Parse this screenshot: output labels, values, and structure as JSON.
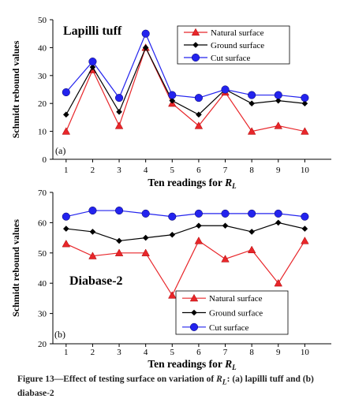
{
  "figure": {
    "charts": [
      {
        "panel": "(a)",
        "title": "Lapilli tuff",
        "ylabel": "Schmidt rebound values",
        "ylim": [
          0,
          50
        ],
        "yticks": [
          0,
          10,
          20,
          30,
          40,
          50
        ],
        "xticks": [
          "1",
          "2",
          "3",
          "4",
          "5",
          "6",
          "7",
          "8",
          "9",
          "10"
        ],
        "xlabel_main": "Ten readings for ",
        "xlabel_sym": "R",
        "xlabel_sub": "L",
        "legend": [
          {
            "label": "Natural surface",
            "marker": "triangle",
            "color": "#e8262a"
          },
          {
            "label": "Ground surface",
            "marker": "diamond",
            "color": "#000000"
          },
          {
            "label": "Cut surface",
            "marker": "circle",
            "color": "#2323ee"
          }
        ]
      },
      {
        "panel": "(b)",
        "title": "Diabase-2",
        "ylabel": "Schmidt rebound values",
        "ylim": [
          20,
          70
        ],
        "yticks": [
          20,
          30,
          40,
          50,
          60,
          70
        ],
        "xticks": [
          "1",
          "2",
          "3",
          "4",
          "5",
          "6",
          "7",
          "8",
          "9",
          "10"
        ],
        "xlabel_main": "Ten readings for ",
        "xlabel_sym": "R",
        "xlabel_sub": "L",
        "legend": [
          {
            "label": "Natural surface",
            "marker": "triangle",
            "color": "#e8262a"
          },
          {
            "label": "Ground surface",
            "marker": "diamond",
            "color": "#000000"
          },
          {
            "label": "Cut surface",
            "marker": "circle",
            "color": "#2323ee"
          }
        ]
      }
    ],
    "caption": {
      "pre": "Figure 13—Effect of testing surface on variation of ",
      "sym": "R",
      "sub": "L",
      "post": ": (a) lapilli tuff and (b) diabase-2"
    }
  },
  "chart_data": [
    {
      "type": "line",
      "title": "Lapilli tuff",
      "xlabel": "Ten readings for RL",
      "ylabel": "Schmidt rebound values",
      "ylim": [
        0,
        50
      ],
      "grid": false,
      "legend_position": "top-right",
      "categories": [
        1,
        2,
        3,
        4,
        5,
        6,
        7,
        8,
        9,
        10
      ],
      "series": [
        {
          "name": "Natural surface",
          "color": "#e8262a",
          "values": [
            10,
            32,
            12,
            40,
            20,
            12,
            24,
            10,
            12,
            10
          ]
        },
        {
          "name": "Ground surface",
          "color": "#000000",
          "values": [
            16,
            33,
            17,
            40,
            21,
            16,
            25,
            20,
            21,
            20
          ]
        },
        {
          "name": "Cut surface",
          "color": "#2323ee",
          "values": [
            24,
            35,
            22,
            45,
            23,
            22,
            25,
            23,
            23,
            22
          ]
        }
      ]
    },
    {
      "type": "line",
      "title": "Diabase-2",
      "xlabel": "Ten readings for RL",
      "ylabel": "Schmidt rebound values",
      "ylim": [
        20,
        70
      ],
      "grid": false,
      "legend_position": "bottom-right",
      "categories": [
        1,
        2,
        3,
        4,
        5,
        6,
        7,
        8,
        9,
        10
      ],
      "series": [
        {
          "name": "Natural surface",
          "color": "#e8262a",
          "values": [
            53,
            49,
            50,
            50,
            36,
            54,
            48,
            51,
            40,
            54
          ]
        },
        {
          "name": "Ground surface",
          "color": "#000000",
          "values": [
            58,
            57,
            54,
            55,
            56,
            59,
            59,
            57,
            60,
            58
          ]
        },
        {
          "name": "Cut surface",
          "color": "#2323ee",
          "values": [
            62,
            64,
            64,
            63,
            62,
            63,
            63,
            63,
            63,
            62
          ]
        }
      ]
    }
  ]
}
